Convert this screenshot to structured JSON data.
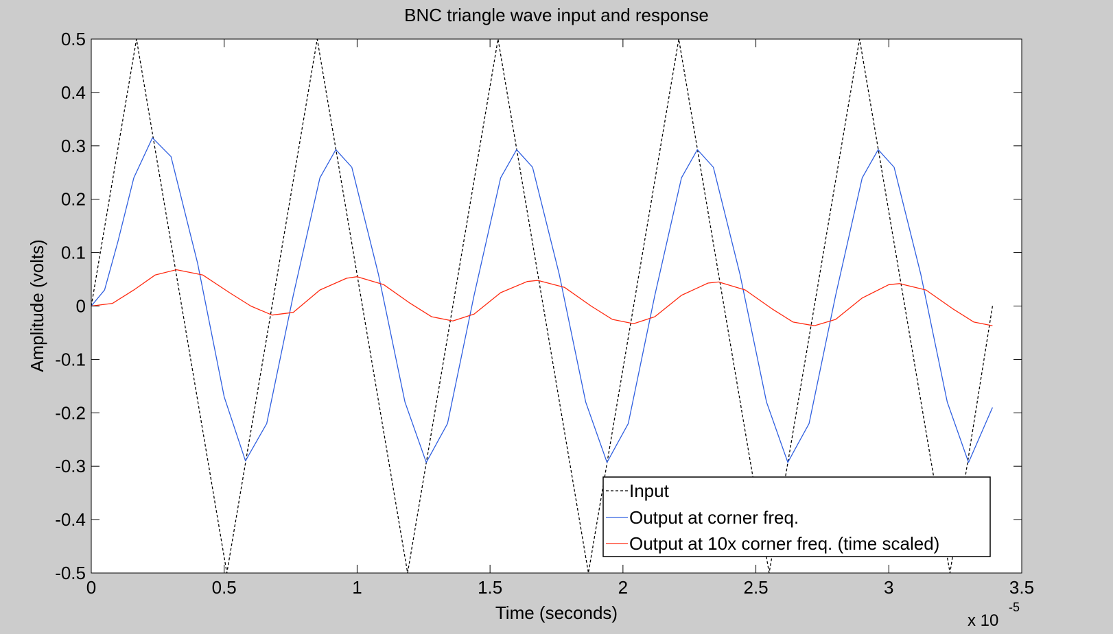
{
  "chart_data": {
    "type": "line",
    "title": "BNC triangle wave input and response",
    "xlabel": "Time (seconds)",
    "ylabel": "Amplitude (volts)",
    "x_exponent_label": "x 10",
    "x_exponent_power": "-5",
    "xlim": [
      0,
      3.5
    ],
    "ylim": [
      -0.5,
      0.5
    ],
    "xticks": [
      0,
      0.5,
      1,
      1.5,
      2,
      2.5,
      3,
      3.5
    ],
    "xtick_labels": [
      "0",
      "0.5",
      "1",
      "1.5",
      "2",
      "2.5",
      "3",
      "3.5"
    ],
    "yticks": [
      -0.5,
      -0.4,
      -0.3,
      -0.2,
      -0.1,
      0,
      0.1,
      0.2,
      0.3,
      0.4,
      0.5
    ],
    "ytick_labels": [
      "-0.5",
      "-0.4",
      "-0.3",
      "-0.2",
      "-0.1",
      "0",
      "0.1",
      "0.2",
      "0.3",
      "0.4",
      "0.5"
    ],
    "grid": false,
    "legend_position": "bottom-right",
    "series": [
      {
        "name": "Input",
        "color": "#000000",
        "style": "dashed",
        "x": [
          0,
          0.17,
          0.51,
          0.85,
          1.19,
          1.53,
          1.87,
          2.21,
          2.55,
          2.89,
          3.23,
          3.39
        ],
        "y": [
          0,
          0.5,
          -0.5,
          0.5,
          -0.5,
          0.5,
          -0.5,
          0.5,
          -0.5,
          0.5,
          -0.5,
          0.0
        ]
      },
      {
        "name": "Output at corner freq.",
        "color": "#2f5fe0",
        "style": "solid",
        "x": [
          0,
          0.05,
          0.1,
          0.16,
          0.23,
          0.3,
          0.4,
          0.5,
          0.58,
          0.66,
          0.76,
          0.86,
          0.92,
          0.98,
          1.08,
          1.18,
          1.26,
          1.34,
          1.44,
          1.54,
          1.6,
          1.66,
          1.76,
          1.86,
          1.94,
          2.02,
          2.12,
          2.22,
          2.28,
          2.34,
          2.44,
          2.54,
          2.62,
          2.7,
          2.8,
          2.9,
          2.96,
          3.02,
          3.12,
          3.22,
          3.3,
          3.39
        ],
        "y": [
          0,
          0.03,
          0.12,
          0.24,
          0.315,
          0.28,
          0.08,
          -0.17,
          -0.29,
          -0.22,
          0.02,
          0.24,
          0.293,
          0.26,
          0.06,
          -0.18,
          -0.293,
          -0.22,
          0.02,
          0.24,
          0.293,
          0.26,
          0.06,
          -0.18,
          -0.293,
          -0.22,
          0.02,
          0.24,
          0.293,
          0.26,
          0.06,
          -0.18,
          -0.293,
          -0.22,
          0.02,
          0.24,
          0.293,
          0.26,
          0.06,
          -0.18,
          -0.293,
          -0.19
        ]
      },
      {
        "name": "Output at 10x corner freq. (time scaled)",
        "color": "#ff2a10",
        "style": "solid",
        "x": [
          0,
          0.08,
          0.16,
          0.24,
          0.32,
          0.42,
          0.52,
          0.6,
          0.68,
          0.76,
          0.86,
          0.96,
          1.0,
          1.1,
          1.2,
          1.28,
          1.36,
          1.44,
          1.54,
          1.64,
          1.68,
          1.78,
          1.88,
          1.96,
          2.04,
          2.12,
          2.22,
          2.32,
          2.36,
          2.46,
          2.56,
          2.64,
          2.72,
          2.8,
          2.9,
          3.0,
          3.04,
          3.14,
          3.24,
          3.32,
          3.39
        ],
        "y": [
          0,
          0.005,
          0.03,
          0.058,
          0.068,
          0.058,
          0.025,
          0.0,
          -0.017,
          -0.012,
          0.03,
          0.052,
          0.055,
          0.04,
          0.005,
          -0.02,
          -0.028,
          -0.015,
          0.025,
          0.046,
          0.048,
          0.035,
          0.0,
          -0.025,
          -0.033,
          -0.02,
          0.02,
          0.043,
          0.045,
          0.03,
          -0.005,
          -0.03,
          -0.037,
          -0.025,
          0.015,
          0.04,
          0.042,
          0.03,
          -0.005,
          -0.03,
          -0.037
        ]
      }
    ]
  }
}
